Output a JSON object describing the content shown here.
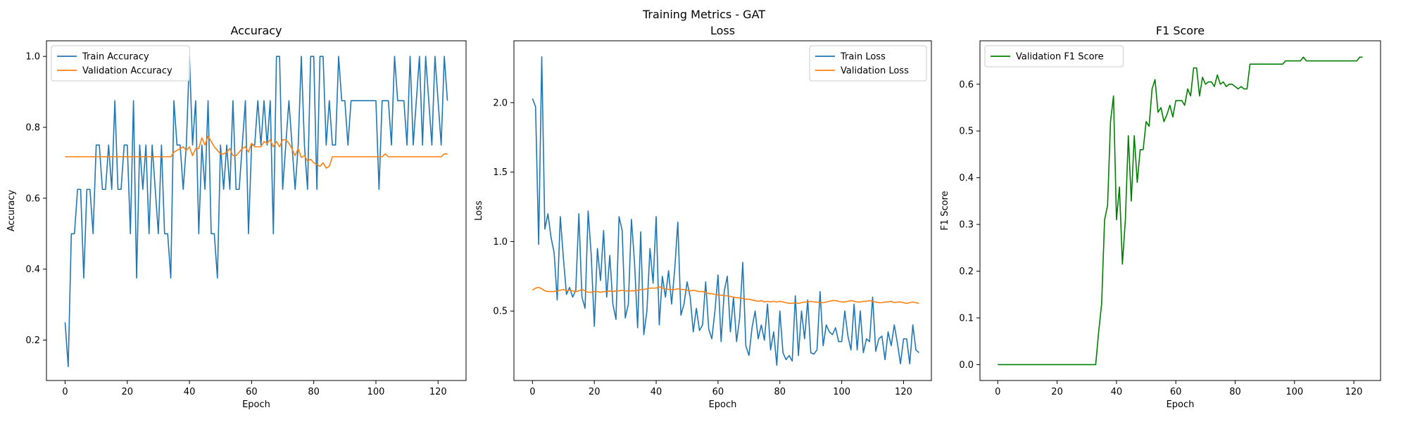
{
  "figure": {
    "suptitle": "Training Metrics - GAT"
  },
  "colors": {
    "train": "#1f77b4",
    "validation": "#ff7f0e",
    "f1": "#008000"
  },
  "chart_data": [
    {
      "type": "line",
      "title": "Accuracy",
      "xlabel": "Epoch",
      "ylabel": "Accuracy",
      "xlim": [
        -6,
        129
      ],
      "ylim": [
        0.086,
        1.044
      ],
      "xticks": [
        0,
        20,
        40,
        60,
        80,
        100,
        120
      ],
      "yticks": [
        0.2,
        0.4,
        0.6,
        0.8,
        1.0
      ],
      "ytick_labels": [
        "0.2",
        "0.4",
        "0.6",
        "0.8",
        "1.0"
      ],
      "legend_position": "upper-left",
      "series": [
        {
          "name": "Train Accuracy",
          "color_key": "train",
          "values": [
            0.25,
            0.125,
            0.5,
            0.5,
            0.625,
            0.625,
            0.375,
            0.625,
            0.625,
            0.5,
            0.75,
            0.75,
            0.625,
            0.625,
            0.75,
            0.625,
            0.875,
            0.625,
            0.625,
            0.75,
            0.75,
            0.5,
            0.875,
            0.375,
            0.75,
            0.625,
            0.75,
            0.5,
            0.75,
            0.625,
            0.5,
            0.75,
            0.5,
            0.5,
            0.375,
            0.875,
            0.75,
            0.75,
            0.625,
            0.75,
            1.0,
            0.75,
            0.875,
            0.5,
            0.75,
            0.625,
            0.875,
            0.5,
            0.5,
            0.375,
            0.75,
            0.625,
            0.75,
            0.625,
            0.875,
            0.625,
            0.625,
            0.75,
            0.875,
            0.5,
            0.75,
            0.75,
            0.875,
            0.75,
            0.875,
            0.75,
            0.875,
            0.5,
            1.0,
            1.0,
            0.625,
            0.75,
            0.875,
            0.75,
            0.625,
            0.75,
            1.0,
            0.75,
            0.625,
            1.0,
            1.0,
            0.625,
            1.0,
            1.0,
            0.75,
            0.875,
            0.75,
            0.75,
            1.0,
            0.875,
            0.875,
            0.75,
            0.875,
            0.875,
            0.875,
            0.875,
            0.875,
            0.875,
            0.875,
            0.875,
            0.875,
            0.625,
            0.875,
            0.875,
            0.875,
            0.75,
            1.0,
            0.875,
            0.875,
            0.875,
            0.75,
            1.0,
            0.75,
            0.875,
            1.0,
            0.75,
            1.0,
            0.875,
            0.75,
            1.0,
            0.875,
            0.75,
            1.0,
            0.875
          ]
        },
        {
          "name": "Validation Accuracy",
          "color_key": "validation",
          "values": [
            0.717,
            0.717,
            0.717,
            0.717,
            0.717,
            0.717,
            0.717,
            0.717,
            0.717,
            0.717,
            0.717,
            0.717,
            0.717,
            0.717,
            0.717,
            0.717,
            0.717,
            0.717,
            0.717,
            0.717,
            0.717,
            0.717,
            0.717,
            0.717,
            0.717,
            0.717,
            0.717,
            0.717,
            0.717,
            0.717,
            0.717,
            0.717,
            0.717,
            0.717,
            0.717,
            0.73,
            0.735,
            0.74,
            0.745,
            0.735,
            0.745,
            0.72,
            0.74,
            0.74,
            0.77,
            0.75,
            0.775,
            0.76,
            0.745,
            0.735,
            0.725,
            0.725,
            0.73,
            0.74,
            0.72,
            0.72,
            0.73,
            0.74,
            0.745,
            0.73,
            0.755,
            0.745,
            0.745,
            0.745,
            0.76,
            0.755,
            0.765,
            0.745,
            0.76,
            0.745,
            0.765,
            0.765,
            0.755,
            0.74,
            0.72,
            0.74,
            0.715,
            0.72,
            0.705,
            0.71,
            0.7,
            0.695,
            0.69,
            0.7,
            0.685,
            0.69,
            0.717,
            0.717,
            0.717,
            0.717,
            0.717,
            0.717,
            0.717,
            0.717,
            0.717,
            0.717,
            0.717,
            0.717,
            0.717,
            0.717,
            0.717,
            0.717,
            0.717,
            0.725,
            0.717,
            0.717,
            0.717,
            0.717,
            0.717,
            0.717,
            0.717,
            0.717,
            0.717,
            0.717,
            0.717,
            0.717,
            0.717,
            0.717,
            0.717,
            0.717,
            0.717,
            0.717,
            0.725,
            0.725
          ]
        }
      ]
    },
    {
      "type": "line",
      "title": "Loss",
      "xlabel": "Epoch",
      "ylabel": "Loss",
      "xlim": [
        -6,
        129
      ],
      "ylim": [
        0.0,
        2.445
      ],
      "xticks": [
        0,
        20,
        40,
        60,
        80,
        100,
        120
      ],
      "yticks": [
        0.5,
        1.0,
        1.5,
        2.0
      ],
      "ytick_labels": [
        "0.5",
        "1.0",
        "1.5",
        "2.0"
      ],
      "legend_position": "upper-right",
      "series": [
        {
          "name": "Train Loss",
          "color_key": "train",
          "values": [
            2.03,
            1.97,
            0.98,
            2.33,
            1.09,
            1.2,
            1.03,
            0.92,
            0.58,
            1.18,
            0.88,
            0.62,
            0.67,
            0.6,
            0.65,
            1.2,
            0.6,
            0.52,
            1.22,
            0.9,
            0.39,
            0.95,
            0.72,
            1.08,
            0.6,
            0.9,
            0.55,
            0.44,
            1.18,
            1.08,
            0.45,
            0.55,
            1.16,
            0.85,
            0.38,
            1.07,
            0.33,
            0.5,
            0.95,
            0.7,
            1.18,
            0.4,
            0.75,
            0.6,
            0.79,
            0.55,
            0.8,
            1.14,
            0.47,
            0.55,
            0.71,
            0.6,
            0.35,
            0.52,
            0.36,
            0.4,
            0.71,
            0.37,
            0.3,
            0.5,
            0.76,
            0.28,
            0.64,
            0.75,
            0.35,
            0.6,
            0.28,
            0.45,
            0.85,
            0.25,
            0.18,
            0.38,
            0.5,
            0.3,
            0.4,
            0.29,
            0.55,
            0.22,
            0.35,
            0.11,
            0.5,
            0.2,
            0.15,
            0.18,
            0.14,
            0.61,
            0.18,
            0.5,
            0.3,
            0.58,
            0.2,
            0.19,
            0.22,
            0.64,
            0.25,
            0.4,
            0.35,
            0.33,
            0.38,
            0.28,
            0.28,
            0.5,
            0.32,
            0.22,
            0.55,
            0.22,
            0.5,
            0.2,
            0.3,
            0.28,
            0.6,
            0.21,
            0.3,
            0.32,
            0.15,
            0.35,
            0.25,
            0.4,
            0.27,
            0.12,
            0.3,
            0.3,
            0.12,
            0.4,
            0.22,
            0.2
          ]
        },
        {
          "name": "Validation Loss",
          "color_key": "validation",
          "values": [
            0.65,
            0.665,
            0.67,
            0.66,
            0.645,
            0.64,
            0.64,
            0.64,
            0.645,
            0.65,
            0.655,
            0.645,
            0.65,
            0.645,
            0.64,
            0.645,
            0.655,
            0.645,
            0.635,
            0.635,
            0.64,
            0.64,
            0.635,
            0.64,
            0.64,
            0.645,
            0.64,
            0.645,
            0.645,
            0.65,
            0.645,
            0.645,
            0.645,
            0.645,
            0.65,
            0.655,
            0.655,
            0.66,
            0.665,
            0.665,
            0.665,
            0.675,
            0.665,
            0.66,
            0.655,
            0.655,
            0.655,
            0.66,
            0.655,
            0.655,
            0.65,
            0.645,
            0.65,
            0.645,
            0.64,
            0.64,
            0.635,
            0.625,
            0.625,
            0.62,
            0.615,
            0.615,
            0.61,
            0.61,
            0.605,
            0.6,
            0.595,
            0.595,
            0.59,
            0.585,
            0.585,
            0.58,
            0.575,
            0.57,
            0.575,
            0.565,
            0.57,
            0.565,
            0.57,
            0.565,
            0.57,
            0.565,
            0.56,
            0.555,
            0.555,
            0.56,
            0.555,
            0.56,
            0.565,
            0.565,
            0.57,
            0.565,
            0.565,
            0.56,
            0.56,
            0.565,
            0.57,
            0.575,
            0.575,
            0.57,
            0.565,
            0.565,
            0.57,
            0.575,
            0.57,
            0.565,
            0.565,
            0.57,
            0.57,
            0.575,
            0.57,
            0.565,
            0.56,
            0.56,
            0.565,
            0.565,
            0.57,
            0.56,
            0.565,
            0.565,
            0.56,
            0.555,
            0.56,
            0.565,
            0.56,
            0.555
          ]
        }
      ]
    },
    {
      "type": "line",
      "title": "F1 Score",
      "xlabel": "Epoch",
      "ylabel": "F1 Score",
      "xlim": [
        -6,
        129
      ],
      "ylim": [
        -0.034,
        0.693
      ],
      "xticks": [
        0,
        20,
        40,
        60,
        80,
        100,
        120
      ],
      "yticks": [
        0.0,
        0.1,
        0.2,
        0.3,
        0.4,
        0.5,
        0.6
      ],
      "ytick_labels": [
        "0.0",
        "0.1",
        "0.2",
        "0.3",
        "0.4",
        "0.5",
        "0.6"
      ],
      "legend_position": "upper-left",
      "series": [
        {
          "name": "Validation F1 Score",
          "color_key": "f1",
          "values": [
            0,
            0,
            0,
            0,
            0,
            0,
            0,
            0,
            0,
            0,
            0,
            0,
            0,
            0,
            0,
            0,
            0,
            0,
            0,
            0,
            0,
            0,
            0,
            0,
            0,
            0,
            0,
            0,
            0,
            0,
            0,
            0,
            0,
            0,
            0.07,
            0.13,
            0.31,
            0.34,
            0.52,
            0.575,
            0.31,
            0.38,
            0.215,
            0.31,
            0.49,
            0.35,
            0.49,
            0.39,
            0.46,
            0.46,
            0.52,
            0.51,
            0.59,
            0.61,
            0.54,
            0.55,
            0.52,
            0.535,
            0.555,
            0.53,
            0.565,
            0.565,
            0.565,
            0.555,
            0.59,
            0.575,
            0.635,
            0.635,
            0.575,
            0.615,
            0.6,
            0.605,
            0.605,
            0.595,
            0.62,
            0.6,
            0.605,
            0.595,
            0.6,
            0.6,
            0.595,
            0.59,
            0.595,
            0.59,
            0.59,
            0.643,
            0.643,
            0.643,
            0.643,
            0.643,
            0.643,
            0.643,
            0.643,
            0.643,
            0.643,
            0.643,
            0.643,
            0.65,
            0.65,
            0.65,
            0.65,
            0.65,
            0.65,
            0.658,
            0.65,
            0.65,
            0.65,
            0.65,
            0.65,
            0.65,
            0.65,
            0.65,
            0.65,
            0.65,
            0.65,
            0.65,
            0.65,
            0.65,
            0.65,
            0.65,
            0.65,
            0.65,
            0.658,
            0.658
          ]
        }
      ]
    }
  ]
}
